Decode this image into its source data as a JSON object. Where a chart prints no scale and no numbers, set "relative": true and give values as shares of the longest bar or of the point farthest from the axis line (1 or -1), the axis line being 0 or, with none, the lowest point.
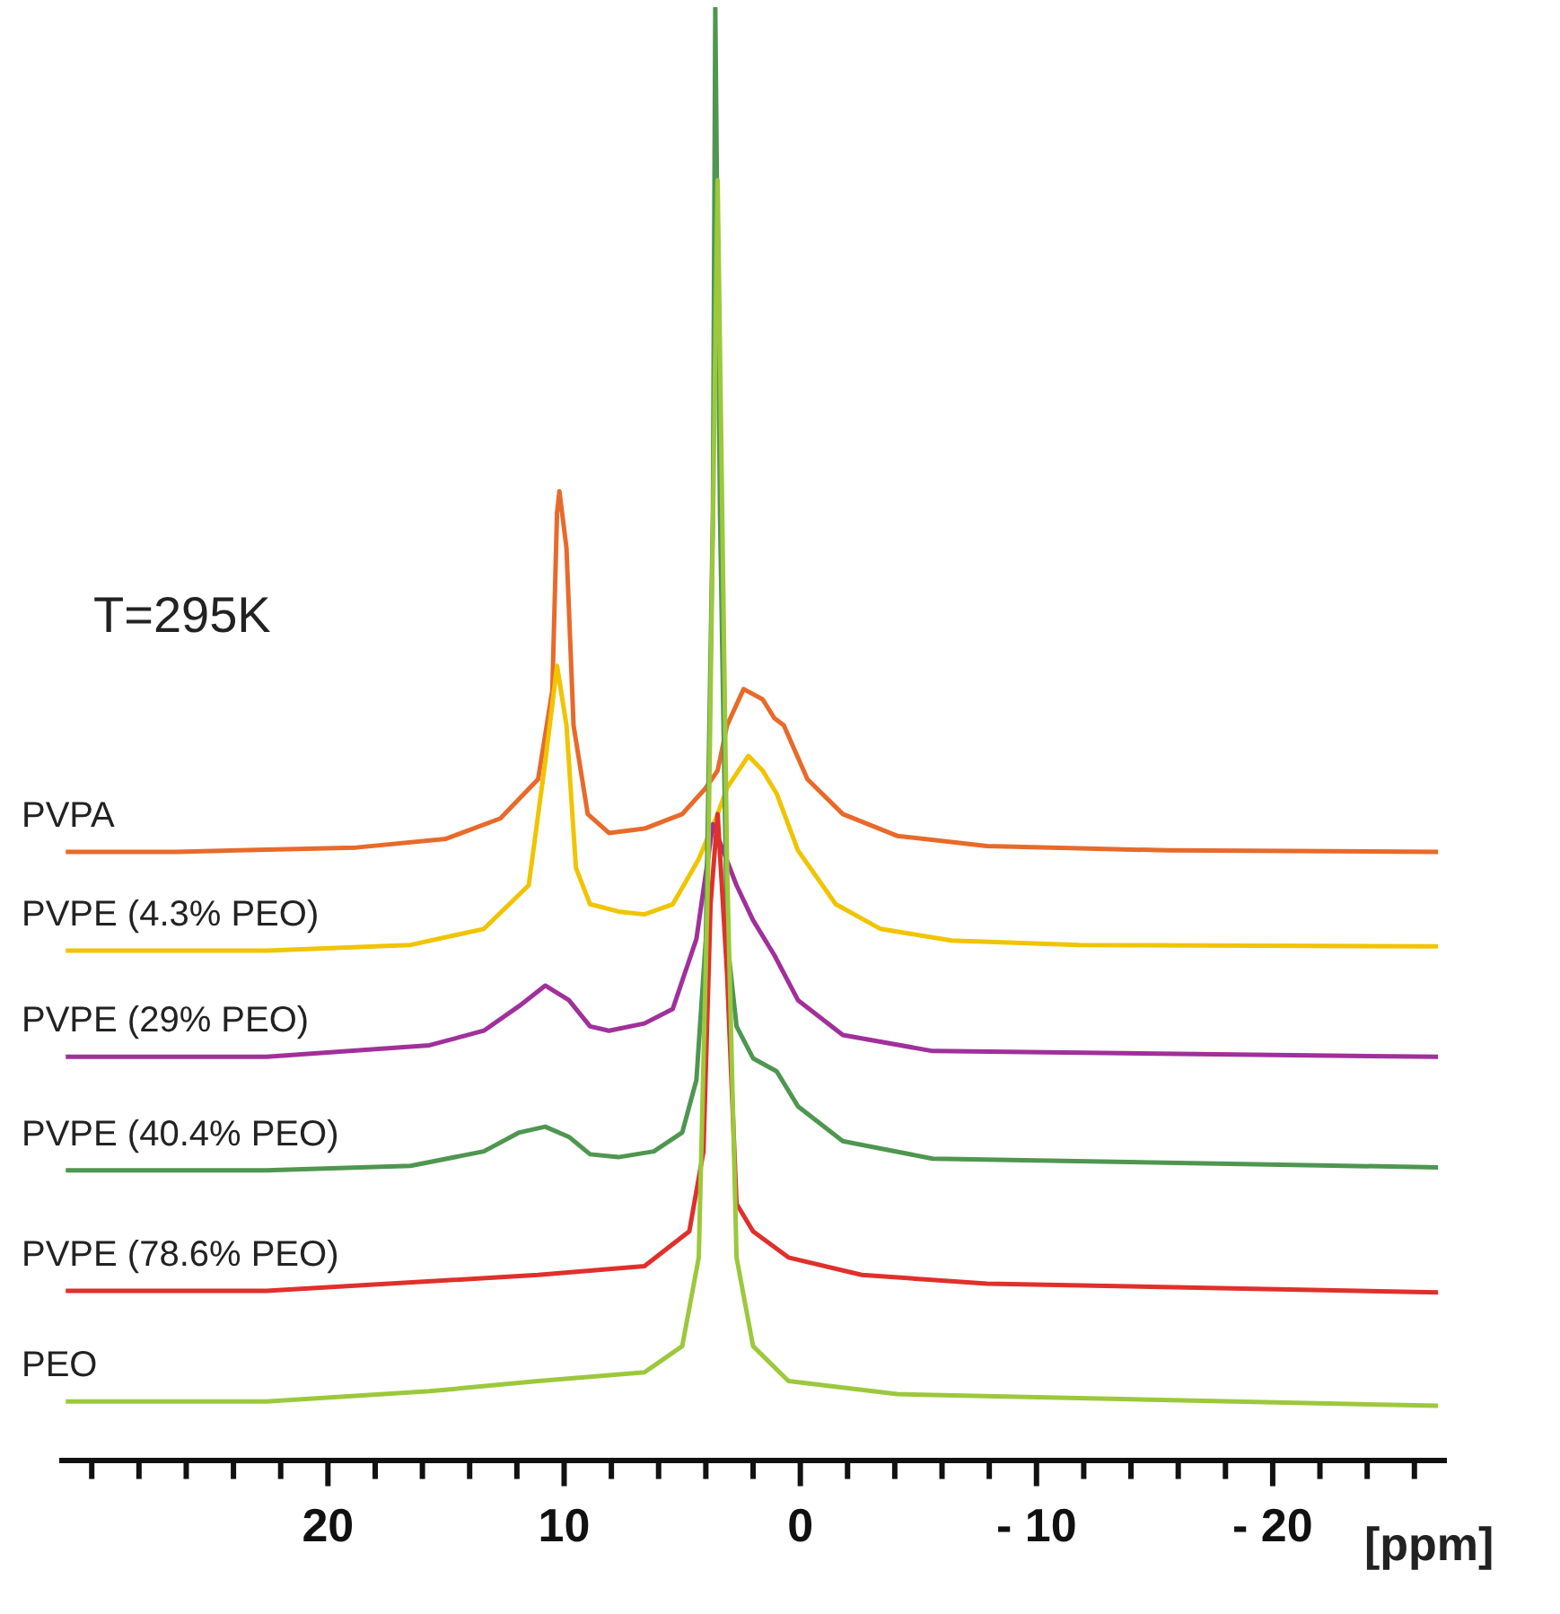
{
  "chart_data": {
    "type": "line",
    "relative": true,
    "xlabel": "[ppm]",
    "annotations": [
      "T=295K"
    ],
    "legend": false,
    "grid": false,
    "marker": "none",
    "line_style": "solid",
    "xlim": [
      31.3,
      -27.3
    ],
    "xticks": [
      {
        "value": 30,
        "label": null
      },
      {
        "value": 28,
        "label": null
      },
      {
        "value": 26,
        "label": null
      },
      {
        "value": 24,
        "label": null
      },
      {
        "value": 22,
        "label": null
      },
      20,
      {
        "value": 18,
        "label": null
      },
      {
        "value": 16,
        "label": null
      },
      {
        "value": 14,
        "label": null
      },
      {
        "value": 12,
        "label": null
      },
      10,
      {
        "value": 8,
        "label": null
      },
      {
        "value": 6,
        "label": null
      },
      {
        "value": 4,
        "label": null
      },
      {
        "value": 2,
        "label": null
      },
      0,
      {
        "value": -2,
        "label": null
      },
      {
        "value": -4,
        "label": null
      },
      {
        "value": -6,
        "label": null
      },
      {
        "value": -8,
        "label": null
      },
      {
        "value": -10,
        "label": "- 10"
      },
      {
        "value": -12,
        "label": null
      },
      {
        "value": -14,
        "label": null
      },
      {
        "value": -16,
        "label": null
      },
      {
        "value": -18,
        "label": null
      },
      {
        "value": -20,
        "label": "- 20"
      },
      {
        "value": -22,
        "label": null
      },
      {
        "value": -24,
        "label": null
      },
      {
        "value": -26,
        "label": null
      }
    ],
    "series": [
      {
        "name": "PVPA",
        "color": "#e86a2a",
        "x": [
          31.1,
          26.4,
          18.8,
          15.0,
          12.7,
          11.1,
          10.5,
          10.3,
          10.2,
          9.9,
          9.6,
          9.0,
          8.1,
          6.6,
          5.0,
          4.0,
          3.5,
          3.1,
          2.4,
          1.6,
          1.1,
          0.7,
          -0.3,
          -1.8,
          -4.1,
          -7.9,
          -15.6,
          -27.0
        ],
        "values": [
          0.419,
          0.419,
          0.422,
          0.428,
          0.442,
          0.469,
          0.53,
          0.652,
          0.667,
          0.628,
          0.506,
          0.445,
          0.432,
          0.435,
          0.445,
          0.463,
          0.475,
          0.506,
          0.531,
          0.524,
          0.511,
          0.506,
          0.469,
          0.445,
          0.43,
          0.423,
          0.42,
          0.419
        ]
      },
      {
        "name": "PVPE (4.3% PEO)",
        "color": "#f0c400",
        "x": [
          31.1,
          22.6,
          16.5,
          13.4,
          11.5,
          10.8,
          10.3,
          9.9,
          9.5,
          8.9,
          7.7,
          6.6,
          5.4,
          4.3,
          3.5,
          3.1,
          2.2,
          1.6,
          1.0,
          0.1,
          -1.5,
          -3.4,
          -6.4,
          -11.8,
          -27.0
        ],
        "values": [
          0.351,
          0.351,
          0.355,
          0.366,
          0.396,
          0.481,
          0.547,
          0.506,
          0.408,
          0.383,
          0.378,
          0.376,
          0.383,
          0.414,
          0.445,
          0.463,
          0.485,
          0.475,
          0.459,
          0.42,
          0.383,
          0.366,
          0.358,
          0.355,
          0.354
        ]
      },
      {
        "name": "PVPE (29% PEO)",
        "color": "#a0309a",
        "x": [
          31.1,
          22.6,
          15.7,
          13.4,
          11.9,
          10.8,
          9.8,
          8.9,
          8.1,
          6.6,
          5.4,
          4.4,
          3.7,
          2.7,
          2.0,
          1.1,
          0.1,
          -1.8,
          -5.6,
          -27.0
        ],
        "values": [
          0.278,
          0.278,
          0.286,
          0.296,
          0.313,
          0.327,
          0.317,
          0.299,
          0.296,
          0.301,
          0.311,
          0.359,
          0.438,
          0.396,
          0.372,
          0.348,
          0.317,
          0.293,
          0.282,
          0.278
        ]
      },
      {
        "name": "PVPE (40.4% PEO)",
        "color": "#4f9650",
        "x": [
          31.1,
          22.6,
          16.5,
          13.4,
          11.9,
          10.8,
          9.8,
          8.9,
          7.7,
          6.2,
          5.0,
          4.4,
          4.0,
          3.7,
          3.6,
          3.4,
          3.1,
          2.7,
          2.0,
          1.0,
          0.1,
          -1.8,
          -5.6,
          -27.0
        ],
        "values": [
          0.2,
          0.2,
          0.203,
          0.213,
          0.226,
          0.23,
          0.223,
          0.211,
          0.209,
          0.213,
          0.226,
          0.262,
          0.359,
          0.652,
          1,
          0.652,
          0.359,
          0.299,
          0.277,
          0.268,
          0.244,
          0.22,
          0.208,
          0.202
        ]
      },
      {
        "name": "PVPE (78.6% PEO)",
        "color": "#e0302c",
        "x": [
          31.1,
          22.6,
          11.1,
          6.6,
          4.7,
          4.1,
          3.8,
          3.5,
          3.1,
          2.7,
          2.0,
          0.5,
          -2.6,
          -7.9,
          -27.0
        ],
        "values": [
          0.117,
          0.117,
          0.128,
          0.134,
          0.158,
          0.213,
          0.383,
          0.445,
          0.335,
          0.177,
          0.158,
          0.14,
          0.128,
          0.122,
          0.116
        ]
      },
      {
        "name": "PEO",
        "color": "#9cc83c",
        "x": [
          31.1,
          22.6,
          15.7,
          11.1,
          6.6,
          5.0,
          4.3,
          3.9,
          3.5,
          3.1,
          2.7,
          2.0,
          0.5,
          -4.1,
          -27.0
        ],
        "values": [
          0.041,
          0.041,
          0.048,
          0.055,
          0.061,
          0.079,
          0.14,
          0.408,
          0.881,
          0.408,
          0.14,
          0.079,
          0.055,
          0.046,
          0.038
        ]
      }
    ]
  }
}
